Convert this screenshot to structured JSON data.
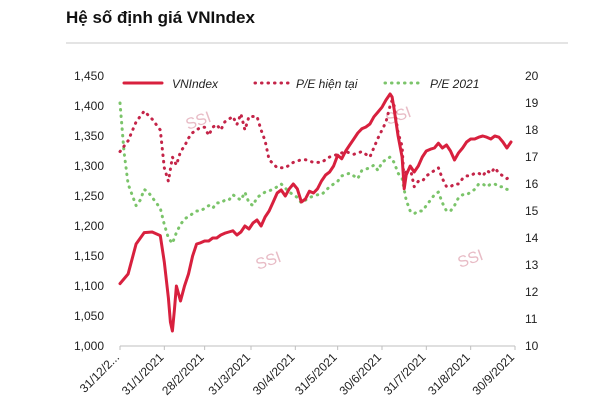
{
  "title": "Hệ số định giá VNIndex",
  "colors": {
    "vnindex": "#d8203e",
    "pe_current": "#c42448",
    "pe_2021": "#7bc46a",
    "grid": "#e6e6e6",
    "watermark": "#e8bcc6"
  },
  "watermark": "SSI",
  "chart_data": {
    "type": "line",
    "title": "",
    "xlabel": "",
    "ylabel": "",
    "x_ticks": [
      "31/12/2...",
      "31/1/2021",
      "28/2/2021",
      "31/3/2021",
      "30/4/2021",
      "31/5/2021",
      "30/6/2021",
      "31/7/2021",
      "31/8/2021",
      "30/9/2021"
    ],
    "y_left": {
      "ticks": [
        "1,000",
        "1,050",
        "1,100",
        "1,150",
        "1,200",
        "1,250",
        "1,300",
        "1,350",
        "1,400",
        "1,450"
      ],
      "range": [
        1000,
        1450
      ]
    },
    "y_right": {
      "ticks": [
        "10",
        "11",
        "12",
        "13",
        "14",
        "15",
        "16",
        "17",
        "18",
        "19",
        "20"
      ],
      "range": [
        10,
        20
      ]
    },
    "legend": {
      "position": "top",
      "items": [
        "VNIndex",
        "P/E hiện tại",
        "P/E 2021"
      ]
    },
    "grid": false,
    "series": [
      {
        "name": "VNIndex",
        "axis": "left",
        "style": "solid",
        "points": [
          [
            0,
            1104
          ],
          [
            4,
            1120
          ],
          [
            8,
            1170
          ],
          [
            12,
            1189
          ],
          [
            16,
            1190
          ],
          [
            20,
            1184
          ],
          [
            22,
            1140
          ],
          [
            24,
            1080
          ],
          [
            25,
            1040
          ],
          [
            26,
            1025
          ],
          [
            27,
            1060
          ],
          [
            28,
            1100
          ],
          [
            30,
            1075
          ],
          [
            32,
            1100
          ],
          [
            34,
            1120
          ],
          [
            36,
            1150
          ],
          [
            38,
            1170
          ],
          [
            40,
            1172
          ],
          [
            42,
            1175
          ],
          [
            44,
            1175
          ],
          [
            46,
            1180
          ],
          [
            48,
            1180
          ],
          [
            50,
            1185
          ],
          [
            52,
            1188
          ],
          [
            54,
            1190
          ],
          [
            56,
            1192
          ],
          [
            58,
            1185
          ],
          [
            60,
            1190
          ],
          [
            62,
            1200
          ],
          [
            64,
            1195
          ],
          [
            66,
            1205
          ],
          [
            68,
            1210
          ],
          [
            70,
            1200
          ],
          [
            72,
            1215
          ],
          [
            74,
            1225
          ],
          [
            76,
            1240
          ],
          [
            78,
            1255
          ],
          [
            80,
            1260
          ],
          [
            82,
            1250
          ],
          [
            84,
            1262
          ],
          [
            86,
            1270
          ],
          [
            88,
            1262
          ],
          [
            90,
            1240
          ],
          [
            92,
            1245
          ],
          [
            94,
            1258
          ],
          [
            96,
            1255
          ],
          [
            98,
            1262
          ],
          [
            100,
            1275
          ],
          [
            102,
            1285
          ],
          [
            104,
            1290
          ],
          [
            106,
            1300
          ],
          [
            108,
            1318
          ],
          [
            110,
            1312
          ],
          [
            112,
            1325
          ],
          [
            114,
            1335
          ],
          [
            116,
            1345
          ],
          [
            118,
            1355
          ],
          [
            120,
            1362
          ],
          [
            122,
            1365
          ],
          [
            124,
            1370
          ],
          [
            126,
            1382
          ],
          [
            128,
            1390
          ],
          [
            130,
            1398
          ],
          [
            132,
            1410
          ],
          [
            134,
            1420
          ],
          [
            135,
            1415
          ],
          [
            136,
            1395
          ],
          [
            138,
            1350
          ],
          [
            140,
            1315
          ],
          [
            141,
            1262
          ],
          [
            142,
            1285
          ],
          [
            144,
            1300
          ],
          [
            146,
            1290
          ],
          [
            148,
            1300
          ],
          [
            150,
            1315
          ],
          [
            152,
            1325
          ],
          [
            154,
            1328
          ],
          [
            156,
            1330
          ],
          [
            158,
            1338
          ],
          [
            160,
            1330
          ],
          [
            162,
            1335
          ],
          [
            164,
            1325
          ],
          [
            166,
            1310
          ],
          [
            168,
            1322
          ],
          [
            170,
            1330
          ],
          [
            172,
            1340
          ],
          [
            174,
            1345
          ],
          [
            176,
            1345
          ],
          [
            178,
            1348
          ],
          [
            180,
            1350
          ],
          [
            182,
            1348
          ],
          [
            184,
            1345
          ],
          [
            186,
            1350
          ],
          [
            188,
            1348
          ],
          [
            190,
            1340
          ],
          [
            192,
            1330
          ],
          [
            194,
            1340
          ]
        ]
      },
      {
        "name": "P/E hiện tại",
        "axis": "right",
        "style": "dotted",
        "points": [
          [
            0,
            17.2
          ],
          [
            4,
            17.6
          ],
          [
            8,
            18.3
          ],
          [
            12,
            18.7
          ],
          [
            16,
            18.4
          ],
          [
            20,
            18.0
          ],
          [
            22,
            16.6
          ],
          [
            24,
            16.1
          ],
          [
            26,
            17.0
          ],
          [
            28,
            16.7
          ],
          [
            30,
            17.2
          ],
          [
            32,
            17.4
          ],
          [
            34,
            17.7
          ],
          [
            36,
            17.9
          ],
          [
            38,
            18.0
          ],
          [
            40,
            18.1
          ],
          [
            42,
            18.1
          ],
          [
            44,
            17.8
          ],
          [
            46,
            18.1
          ],
          [
            48,
            18.2
          ],
          [
            50,
            18.0
          ],
          [
            52,
            18.3
          ],
          [
            54,
            18.4
          ],
          [
            56,
            18.5
          ],
          [
            58,
            18.2
          ],
          [
            60,
            18.6
          ],
          [
            62,
            18.0
          ],
          [
            64,
            18.5
          ],
          [
            68,
            18.5
          ],
          [
            70,
            18.0
          ],
          [
            72,
            17.6
          ],
          [
            74,
            16.9
          ],
          [
            78,
            16.6
          ],
          [
            82,
            16.6
          ],
          [
            86,
            16.8
          ],
          [
            90,
            16.9
          ],
          [
            92,
            16.9
          ],
          [
            96,
            16.8
          ],
          [
            100,
            16.8
          ],
          [
            104,
            17.0
          ],
          [
            108,
            17.1
          ],
          [
            112,
            17.2
          ],
          [
            116,
            17.1
          ],
          [
            120,
            17.2
          ],
          [
            124,
            17.0
          ],
          [
            128,
            17.7
          ],
          [
            132,
            18.3
          ],
          [
            134,
            18.9
          ],
          [
            135,
            19.1
          ],
          [
            136,
            18.9
          ],
          [
            138,
            17.9
          ],
          [
            140,
            17.4
          ],
          [
            141,
            16.0
          ],
          [
            142,
            16.5
          ],
          [
            144,
            16.6
          ],
          [
            146,
            15.9
          ],
          [
            148,
            16.1
          ],
          [
            150,
            16.1
          ],
          [
            152,
            16.3
          ],
          [
            154,
            16.4
          ],
          [
            156,
            16.5
          ],
          [
            158,
            16.6
          ],
          [
            160,
            16.2
          ],
          [
            162,
            15.9
          ],
          [
            164,
            15.9
          ],
          [
            166,
            16.0
          ],
          [
            168,
            16.0
          ],
          [
            170,
            16.2
          ],
          [
            172,
            16.3
          ],
          [
            174,
            16.3
          ],
          [
            176,
            16.4
          ],
          [
            178,
            16.4
          ],
          [
            180,
            16.3
          ],
          [
            182,
            16.5
          ],
          [
            184,
            16.4
          ],
          [
            186,
            16.6
          ],
          [
            188,
            16.4
          ],
          [
            190,
            16.3
          ],
          [
            192,
            16.2
          ],
          [
            194,
            16.3
          ]
        ]
      },
      {
        "name": "P/E 2021",
        "axis": "right",
        "style": "dotted",
        "points": [
          [
            0,
            19.0
          ],
          [
            2,
            17.2
          ],
          [
            4,
            16.0
          ],
          [
            6,
            15.6
          ],
          [
            8,
            15.2
          ],
          [
            10,
            15.4
          ],
          [
            12,
            15.8
          ],
          [
            14,
            15.7
          ],
          [
            16,
            15.5
          ],
          [
            18,
            15.3
          ],
          [
            20,
            15.1
          ],
          [
            22,
            14.5
          ],
          [
            24,
            14.0
          ],
          [
            26,
            13.8
          ],
          [
            28,
            14.2
          ],
          [
            30,
            14.5
          ],
          [
            32,
            14.7
          ],
          [
            34,
            14.8
          ],
          [
            36,
            14.9
          ],
          [
            38,
            15.0
          ],
          [
            40,
            15.0
          ],
          [
            42,
            15.1
          ],
          [
            44,
            15.2
          ],
          [
            46,
            15.1
          ],
          [
            48,
            15.3
          ],
          [
            50,
            15.3
          ],
          [
            52,
            15.4
          ],
          [
            54,
            15.4
          ],
          [
            56,
            15.6
          ],
          [
            58,
            15.5
          ],
          [
            60,
            15.4
          ],
          [
            62,
            15.7
          ],
          [
            64,
            15.3
          ],
          [
            66,
            15.2
          ],
          [
            68,
            15.5
          ],
          [
            70,
            15.6
          ],
          [
            72,
            15.7
          ],
          [
            76,
            15.8
          ],
          [
            78,
            15.9
          ],
          [
            80,
            16.0
          ],
          [
            84,
            15.7
          ],
          [
            88,
            15.5
          ],
          [
            90,
            15.3
          ],
          [
            94,
            15.5
          ],
          [
            98,
            15.6
          ],
          [
            100,
            15.6
          ],
          [
            104,
            15.9
          ],
          [
            108,
            16.1
          ],
          [
            110,
            16.3
          ],
          [
            114,
            16.4
          ],
          [
            118,
            16.2
          ],
          [
            120,
            16.5
          ],
          [
            124,
            16.6
          ],
          [
            126,
            16.7
          ],
          [
            128,
            16.5
          ],
          [
            130,
            16.8
          ],
          [
            132,
            16.9
          ],
          [
            134,
            17.0
          ],
          [
            136,
            16.8
          ],
          [
            138,
            16.4
          ],
          [
            140,
            16.2
          ],
          [
            142,
            15.4
          ],
          [
            144,
            15.0
          ],
          [
            146,
            14.9
          ],
          [
            148,
            15.0
          ],
          [
            150,
            15.0
          ],
          [
            152,
            15.2
          ],
          [
            154,
            15.4
          ],
          [
            156,
            15.6
          ],
          [
            158,
            15.7
          ],
          [
            160,
            15.3
          ],
          [
            162,
            15.0
          ],
          [
            164,
            15.0
          ],
          [
            166,
            15.2
          ],
          [
            168,
            15.5
          ],
          [
            170,
            15.6
          ],
          [
            172,
            15.6
          ],
          [
            174,
            15.7
          ],
          [
            176,
            15.8
          ],
          [
            178,
            16.0
          ],
          [
            180,
            16.0
          ],
          [
            182,
            15.9
          ],
          [
            184,
            16.0
          ],
          [
            186,
            16.0
          ],
          [
            188,
            15.9
          ],
          [
            190,
            15.9
          ],
          [
            192,
            15.8
          ],
          [
            194,
            15.8
          ]
        ]
      }
    ]
  }
}
